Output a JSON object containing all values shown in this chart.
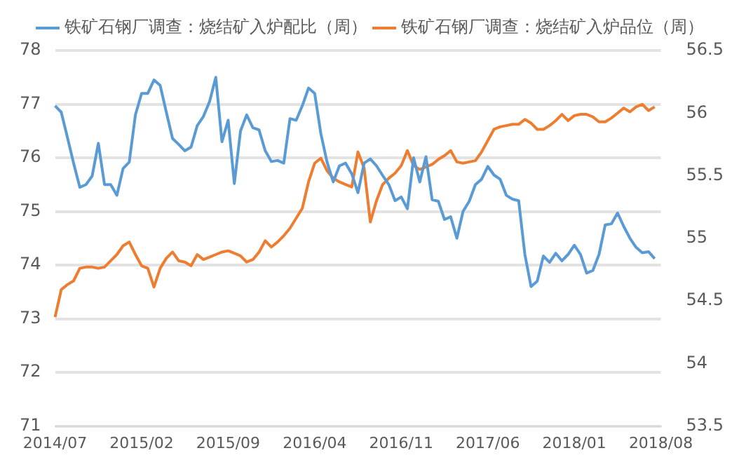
{
  "chart_data": {
    "type": "line",
    "categories": [
      "2014/07",
      null,
      null,
      null,
      null,
      null,
      null,
      null,
      null,
      null,
      null,
      null,
      null,
      null,
      "2015/02",
      null,
      null,
      null,
      null,
      null,
      null,
      null,
      null,
      null,
      null,
      null,
      null,
      null,
      "2015/09",
      null,
      null,
      null,
      null,
      null,
      null,
      null,
      null,
      null,
      null,
      null,
      null,
      null,
      "2016/04",
      null,
      null,
      null,
      null,
      null,
      null,
      null,
      null,
      null,
      null,
      null,
      null,
      null,
      "2016/11",
      null,
      null,
      null,
      null,
      null,
      null,
      null,
      null,
      null,
      null,
      null,
      null,
      null,
      "2017/06",
      null,
      null,
      null,
      null,
      null,
      null,
      null,
      null,
      null,
      null,
      null,
      null,
      null,
      "2018/01",
      null,
      null,
      null,
      null,
      null,
      null,
      null,
      null,
      null,
      null,
      null,
      null,
      null,
      "2018/08"
    ],
    "series": [
      {
        "name": "铁矿石钢厂调查：烧结矿入炉配比（周）",
        "color": "#5b9bd5",
        "values": [
          76.97,
          76.85,
          76.38,
          75.9,
          75.45,
          75.5,
          75.66,
          76.27,
          75.5,
          75.5,
          75.3,
          75.8,
          75.92,
          76.8,
          77.2,
          77.2,
          77.45,
          77.35,
          76.85,
          76.36,
          76.25,
          76.13,
          76.2,
          76.6,
          76.77,
          77.05,
          77.5,
          76.3,
          76.7,
          75.52,
          76.5,
          76.8,
          76.56,
          76.52,
          76.13,
          75.93,
          75.95,
          75.9,
          76.73,
          76.7,
          76.97,
          77.3,
          77.2,
          76.45,
          75.92,
          75.55,
          75.85,
          75.9,
          75.7,
          75.35,
          75.9,
          75.98,
          75.85,
          75.67,
          75.5,
          75.2,
          75.27,
          75.05,
          76.0,
          75.55,
          76.02,
          75.22,
          75.19,
          74.85,
          74.9,
          74.5,
          75.0,
          75.19,
          75.5,
          75.6,
          75.84,
          75.68,
          75.6,
          75.3,
          75.23,
          75.2,
          74.2,
          73.6,
          73.7,
          74.17,
          74.05,
          74.22,
          74.08,
          74.2,
          74.37,
          74.2,
          73.85,
          73.9,
          74.2,
          74.75,
          74.77,
          74.97,
          74.72,
          74.5,
          74.33,
          74.23,
          74.25,
          74.12,
          null
        ]
      },
      {
        "name": "铁矿石钢厂调查：烧结矿入炉品位（周）",
        "color": "#ed7d31",
        "axis": "y2",
        "values": [
          54.37,
          54.59,
          54.63,
          54.66,
          54.76,
          54.77,
          54.77,
          54.76,
          54.77,
          54.82,
          54.87,
          54.94,
          54.97,
          54.87,
          54.78,
          54.76,
          54.61,
          54.76,
          54.84,
          54.89,
          54.82,
          54.81,
          54.78,
          54.87,
          54.83,
          54.85,
          54.87,
          54.89,
          54.9,
          54.88,
          54.86,
          54.81,
          54.83,
          54.89,
          54.98,
          54.93,
          54.97,
          55.02,
          55.08,
          55.16,
          55.24,
          55.45,
          55.6,
          55.64,
          55.54,
          55.48,
          55.45,
          55.43,
          55.41,
          55.69,
          55.56,
          55.13,
          55.3,
          55.43,
          55.48,
          55.52,
          55.58,
          55.7,
          55.58,
          55.55,
          55.57,
          55.59,
          55.63,
          55.66,
          55.7,
          55.61,
          55.6,
          55.61,
          55.62,
          55.69,
          55.78,
          55.87,
          55.89,
          55.9,
          55.91,
          55.91,
          55.95,
          55.92,
          55.87,
          55.87,
          55.9,
          55.94,
          55.99,
          55.94,
          55.98,
          55.99,
          55.99,
          55.97,
          55.93,
          55.93,
          55.96,
          56.0,
          56.04,
          56.01,
          56.05,
          56.07,
          56.02,
          56.05,
          null
        ]
      }
    ],
    "ylim": [
      71,
      78
    ],
    "yticks": [
      71,
      72,
      73,
      74,
      75,
      76,
      77,
      78
    ],
    "y2lim": [
      53.5,
      56.5
    ],
    "y2ticks": [
      53.5,
      54,
      54.5,
      55,
      55.5,
      56,
      56.5
    ],
    "grid": "y",
    "legend": "top",
    "marker": "none",
    "line_style": "solid"
  }
}
